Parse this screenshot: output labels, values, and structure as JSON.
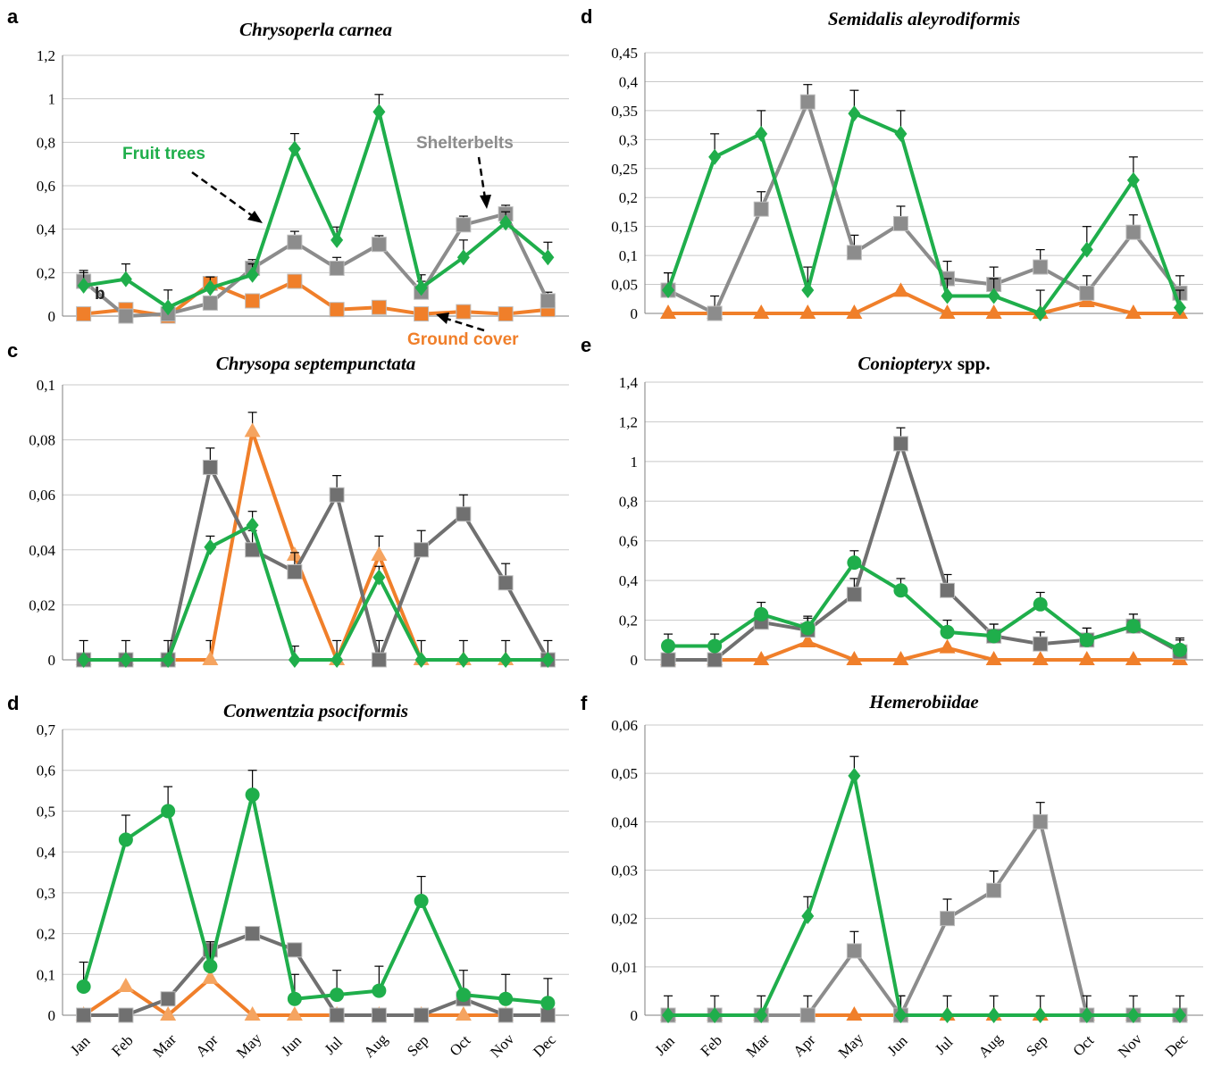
{
  "figure": {
    "months": [
      "Jan",
      "Feb",
      "Mar",
      "Apr",
      "May",
      "Jun",
      "Jul",
      "Aug",
      "Sep",
      "Oct",
      "Nov",
      "Dec"
    ],
    "colors": {
      "fruit_trees": "#1fae4b",
      "shelterbelts": "#8c8c8c",
      "ground_cover": "#f07f2a",
      "ground_cover_marker": "#f5a460",
      "shelterbelts_dark": "#707070"
    }
  },
  "annotations": {
    "fruit_trees": "Fruit trees",
    "shelterbelts": "Shelterbelts",
    "ground_cover": "Ground cover",
    "inset_letter": "b"
  },
  "chart_data": [
    {
      "id": "a",
      "letter": "a",
      "type": "line",
      "title": "Chrysoperla carnea",
      "ylim": [
        0,
        1.2
      ],
      "yticks": [
        "0",
        "0,2",
        "0,4",
        "0,6",
        "0,8",
        "1",
        "1,2"
      ],
      "show_month_labels": false,
      "x": [
        "Jan",
        "Feb",
        "Mar",
        "Apr",
        "May",
        "Jun",
        "Jul",
        "Aug",
        "Sep",
        "Oct",
        "Nov",
        "Dec"
      ],
      "series": [
        {
          "name": "Fruit trees",
          "key": "fruit_trees",
          "marker": "diamond",
          "values": [
            0.14,
            0.17,
            0.04,
            0.13,
            0.19,
            0.77,
            0.35,
            0.94,
            0.13,
            0.27,
            0.43,
            0.27
          ],
          "errors": [
            0.06,
            0.07,
            0.08,
            0.05,
            0.05,
            0.07,
            0.06,
            0.08,
            0.06,
            0.08,
            0.05,
            0.07
          ]
        },
        {
          "name": "Shelterbelts",
          "key": "shelterbelts",
          "marker": "square",
          "values": [
            0.16,
            0.0,
            0.01,
            0.06,
            0.22,
            0.34,
            0.22,
            0.33,
            0.11,
            0.42,
            0.47,
            0.07
          ],
          "errors": [
            0.05,
            0.03,
            0.03,
            0.07,
            0.04,
            0.05,
            0.05,
            0.04,
            0.05,
            0.04,
            0.04,
            0.04
          ]
        },
        {
          "name": "Ground cover",
          "key": "ground_cover",
          "marker": "square",
          "values": [
            0.01,
            0.03,
            0.0,
            0.15,
            0.07,
            0.16,
            0.03,
            0.04,
            0.01,
            0.02,
            0.01,
            0.03
          ],
          "errors": [
            0,
            0,
            0,
            0,
            0,
            0,
            0,
            0,
            0,
            0,
            0,
            0
          ]
        }
      ]
    },
    {
      "id": "c",
      "letter": "c",
      "type": "line",
      "title": "Chrysopa septempunctata",
      "ylim": [
        0,
        0.1
      ],
      "yticks": [
        "0",
        "0,02",
        "0,04",
        "0,06",
        "0,08",
        "0,1"
      ],
      "show_month_labels": false,
      "x": [
        "Jan",
        "Feb",
        "Mar",
        "Apr",
        "May",
        "Jun",
        "Jul",
        "Aug",
        "Sep",
        "Oct",
        "Nov",
        "Dec"
      ],
      "series": [
        {
          "name": "Fruit trees",
          "key": "fruit_trees",
          "marker": "diamond",
          "values": [
            0,
            0,
            0,
            0.041,
            0.049,
            0,
            0,
            0.03,
            0,
            0,
            0,
            0
          ],
          "errors": [
            0.007,
            0.007,
            0.007,
            0.004,
            0.005,
            0.005,
            0.007,
            0.004,
            0.007,
            0.007,
            0.007,
            0.007
          ]
        },
        {
          "name": "Shelterbelts",
          "key": "shelterbelts_dark",
          "marker": "square",
          "values": [
            0,
            0,
            0,
            0.07,
            0.04,
            0.032,
            0.06,
            0,
            0.04,
            0.053,
            0.028,
            0
          ],
          "errors": [
            0,
            0,
            0,
            0.007,
            0.007,
            0.007,
            0.007,
            0.007,
            0.007,
            0.007,
            0.007,
            0
          ]
        },
        {
          "name": "Ground cover",
          "key": "ground_cover",
          "marker": "triangle",
          "values": [
            0,
            0,
            0,
            0,
            0.083,
            0.038,
            0,
            0.038,
            0,
            0,
            0,
            0
          ],
          "errors": [
            0,
            0,
            0,
            0.007,
            0.007,
            0,
            0,
            0.007,
            0,
            0,
            0,
            0
          ]
        }
      ]
    },
    {
      "id": "d_left",
      "letter": "d",
      "type": "line",
      "title": "Conwentzia psociformis",
      "ylim": [
        0,
        0.7
      ],
      "yticks": [
        "0",
        "0,1",
        "0,2",
        "0,3",
        "0,4",
        "0,5",
        "0,6",
        "0,7"
      ],
      "show_month_labels": true,
      "x": [
        "Jan",
        "Feb",
        "Mar",
        "Apr",
        "May",
        "Jun",
        "Jul",
        "Aug",
        "Sep",
        "Oct",
        "Nov",
        "Dec"
      ],
      "series": [
        {
          "name": "Fruit trees",
          "key": "fruit_trees",
          "marker": "circle",
          "values": [
            0.07,
            0.43,
            0.5,
            0.12,
            0.54,
            0.04,
            0.05,
            0.06,
            0.28,
            0.05,
            0.04,
            0.03
          ],
          "errors": [
            0.06,
            0.06,
            0.06,
            0.06,
            0.06,
            0.06,
            0.06,
            0.06,
            0.06,
            0.06,
            0.06,
            0.06
          ]
        },
        {
          "name": "Shelterbelts",
          "key": "shelterbelts_dark",
          "marker": "square",
          "values": [
            0,
            0,
            0.04,
            0.16,
            0.2,
            0.16,
            0,
            0,
            0,
            0.04,
            0,
            0
          ],
          "errors": [
            0,
            0,
            0,
            0,
            0,
            0,
            0,
            0,
            0,
            0,
            0,
            0
          ]
        },
        {
          "name": "Ground cover",
          "key": "ground_cover",
          "marker": "triangle",
          "values": [
            0,
            0.07,
            0,
            0.09,
            0,
            0,
            0,
            0,
            0,
            0,
            0,
            0
          ],
          "errors": [
            0,
            0,
            0,
            0,
            0,
            0,
            0,
            0,
            0,
            0,
            0,
            0
          ]
        }
      ]
    },
    {
      "id": "d_right",
      "letter": "d",
      "type": "line",
      "title": "Semidalis aleyrodiformis",
      "ylim": [
        0,
        0.45
      ],
      "yticks": [
        "0",
        "0,05",
        "0,1",
        "0,15",
        "0,2",
        "0,25",
        "0,3",
        "0,35",
        "0,4",
        "0,45"
      ],
      "show_month_labels": false,
      "x": [
        "Jan",
        "Feb",
        "Mar",
        "Apr",
        "May",
        "Jun",
        "Jul",
        "Aug",
        "Sep",
        "Oct",
        "Nov",
        "Dec"
      ],
      "series": [
        {
          "name": "Fruit trees",
          "key": "fruit_trees",
          "marker": "diamond",
          "values": [
            0.04,
            0.27,
            0.31,
            0.04,
            0.345,
            0.31,
            0.03,
            0.03,
            0,
            0.11,
            0.23,
            0.01
          ],
          "errors": [
            0.03,
            0.04,
            0.04,
            0.04,
            0.04,
            0.04,
            0.03,
            0.03,
            0.04,
            0.04,
            0.04,
            0.03
          ]
        },
        {
          "name": "Shelterbelts",
          "key": "shelterbelts",
          "marker": "square",
          "values": [
            0.04,
            0,
            0.18,
            0.365,
            0.105,
            0.155,
            0.06,
            0.05,
            0.08,
            0.035,
            0.14,
            0.035
          ],
          "errors": [
            0.03,
            0.03,
            0.03,
            0.03,
            0.03,
            0.03,
            0.03,
            0.03,
            0.03,
            0.03,
            0.03,
            0.03
          ]
        },
        {
          "name": "Ground cover",
          "key": "ground_cover",
          "marker": "triangle",
          "values": [
            0,
            0,
            0,
            0,
            0,
            0.038,
            0,
            0,
            0,
            0.02,
            0,
            0
          ],
          "errors": [
            0,
            0,
            0,
            0,
            0,
            0,
            0,
            0,
            0,
            0,
            0,
            0
          ]
        }
      ]
    },
    {
      "id": "e",
      "letter": "e",
      "type": "line",
      "title": "Coniopteryx spp.",
      "ylim": [
        0,
        1.4
      ],
      "yticks": [
        "0",
        "0,2",
        "0,4",
        "0,6",
        "0,8",
        "1",
        "1,2",
        "1,4"
      ],
      "show_month_labels": false,
      "x": [
        "Jan",
        "Feb",
        "Mar",
        "Apr",
        "May",
        "Jun",
        "Jul",
        "Aug",
        "Sep",
        "Oct",
        "Nov",
        "Dec"
      ],
      "series": [
        {
          "name": "Fruit trees",
          "key": "fruit_trees",
          "marker": "circle",
          "values": [
            0.07,
            0.07,
            0.23,
            0.16,
            0.49,
            0.35,
            0.14,
            0.12,
            0.28,
            0.1,
            0.17,
            0.05
          ],
          "errors": [
            0.06,
            0.06,
            0.06,
            0.06,
            0.06,
            0.06,
            0.06,
            0.06,
            0.06,
            0.06,
            0.06,
            0.06
          ]
        },
        {
          "name": "Shelterbelts",
          "key": "shelterbelts_dark",
          "marker": "square",
          "values": [
            0,
            0,
            0.19,
            0.15,
            0.33,
            1.09,
            0.35,
            0.12,
            0.08,
            0.1,
            0.17,
            0.04
          ],
          "errors": [
            0.06,
            0.06,
            0.06,
            0.06,
            0.08,
            0.08,
            0.08,
            0.06,
            0.06,
            0.06,
            0.06,
            0.06
          ]
        },
        {
          "name": "Ground cover",
          "key": "ground_cover",
          "marker": "triangle",
          "values": [
            0,
            0,
            0,
            0.09,
            0,
            0,
            0.06,
            0,
            0,
            0,
            0,
            0
          ],
          "errors": [
            0,
            0,
            0,
            0,
            0,
            0,
            0,
            0,
            0,
            0,
            0,
            0
          ]
        }
      ]
    },
    {
      "id": "f",
      "letter": "f",
      "type": "line",
      "title": "Hemerobiidae",
      "ylim": [
        0,
        0.06
      ],
      "yticks": [
        "0",
        "0,01",
        "0,02",
        "0,03",
        "0,04",
        "0,05",
        "0,06"
      ],
      "show_month_labels": true,
      "x": [
        "Jan",
        "Feb",
        "Mar",
        "Apr",
        "May",
        "Jun",
        "Jul",
        "Aug",
        "Sep",
        "Oct",
        "Nov",
        "Dec"
      ],
      "series": [
        {
          "name": "Fruit trees",
          "key": "fruit_trees",
          "marker": "diamond",
          "values": [
            0,
            0,
            0,
            0.0205,
            0.0495,
            0,
            0,
            0,
            0,
            0,
            0,
            0
          ],
          "errors": [
            0.004,
            0.004,
            0.004,
            0.004,
            0.004,
            0.004,
            0.004,
            0.004,
            0.004,
            0.004,
            0.004,
            0.004
          ]
        },
        {
          "name": "Shelterbelts",
          "key": "shelterbelts",
          "marker": "square",
          "values": [
            0,
            0,
            0,
            0,
            0.0133,
            0,
            0.02,
            0.0258,
            0.04,
            0,
            0,
            0
          ],
          "errors": [
            0,
            0,
            0,
            0.004,
            0.004,
            0.004,
            0.004,
            0.004,
            0.004,
            0,
            0,
            0
          ]
        },
        {
          "name": "Ground cover",
          "key": "ground_cover",
          "marker": "triangle",
          "values": [
            0,
            0,
            0,
            0,
            0,
            0,
            0,
            0,
            0,
            0,
            0,
            0
          ],
          "errors": [
            0,
            0,
            0,
            0,
            0,
            0,
            0,
            0,
            0,
            0,
            0,
            0
          ]
        }
      ]
    }
  ]
}
